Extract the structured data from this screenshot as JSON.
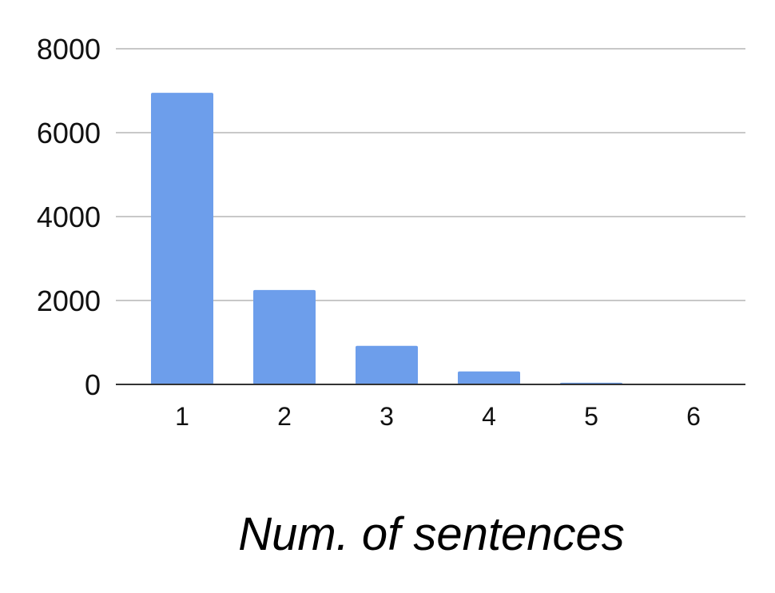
{
  "chart_data": {
    "type": "bar",
    "categories": [
      "1",
      "2",
      "3",
      "4",
      "5",
      "6"
    ],
    "values": [
      6950,
      2250,
      920,
      310,
      40,
      5
    ],
    "title": "",
    "xlabel": "Num. of sentences",
    "ylabel": "",
    "ylim": [
      0,
      8000
    ],
    "yticks": [
      0,
      2000,
      4000,
      6000,
      8000
    ],
    "ytick_labels": [
      "0",
      "2000",
      "4000",
      "6000",
      "8000"
    ],
    "grid": true,
    "legend": "none",
    "bar_color": "#6d9eeb"
  }
}
